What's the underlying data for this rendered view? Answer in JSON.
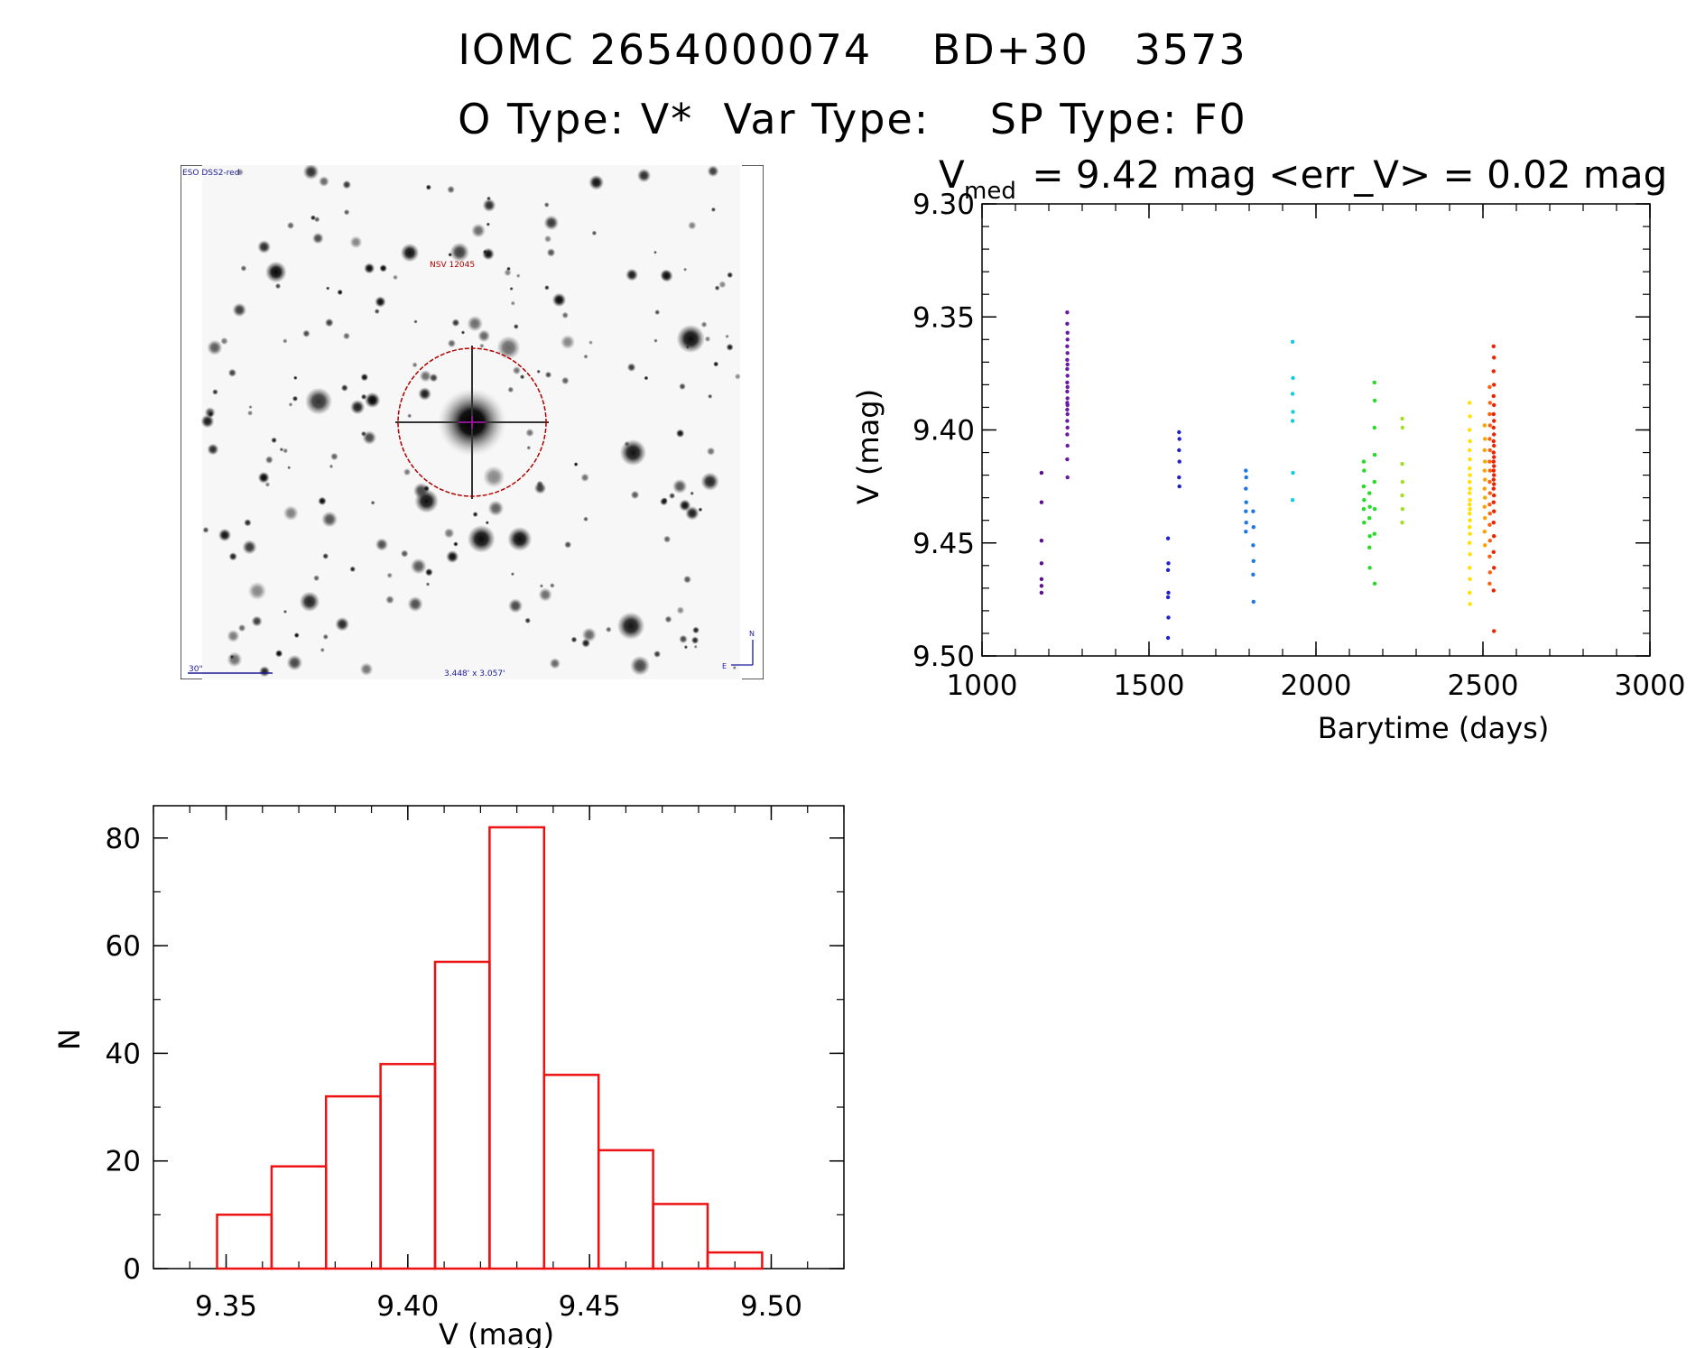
{
  "titles": {
    "line1": "IOMC 2654000074    BD+30   3573",
    "line2": "O Type: V*  Var Type:    SP Type: F0"
  },
  "finder": {
    "survey_label": "ESO DSS2-red",
    "target_label": "NSV 12045",
    "scale_label": "30\"",
    "fov_label": "3.448' x 3.057'",
    "north_label": "N",
    "east_label": "E"
  },
  "colors": {
    "histogram": "#ee1111",
    "axes": "#000000"
  },
  "chart_data": [
    {
      "type": "scatter",
      "title_main": "V",
      "title_sub": "med",
      "title_rest": " = 9.42 mag <err_V> = 0.02 mag",
      "xlabel": "Barytime (days)",
      "ylabel": "V (mag)",
      "xlim": [
        1000,
        3000
      ],
      "ylim": [
        9.3,
        9.5
      ],
      "y_inverted": true,
      "xticks": [
        "1000",
        "1500",
        "2000",
        "2500",
        "3000"
      ],
      "yticks": [
        "9.30",
        "9.35",
        "9.40",
        "9.45",
        "9.50"
      ],
      "color_scale": "rainbow by time",
      "series": [
        {
          "color": "#5a0f8c",
          "points": [
            [
              1178,
              9.419
            ],
            [
              1178,
              9.432
            ],
            [
              1178,
              9.449
            ],
            [
              1178,
              9.459
            ],
            [
              1178,
              9.466
            ],
            [
              1178,
              9.469
            ],
            [
              1178,
              9.472
            ]
          ]
        },
        {
          "color": "#6a1aa8",
          "points": [
            [
              1255,
              9.348
            ],
            [
              1255,
              9.353
            ],
            [
              1256,
              9.357
            ],
            [
              1256,
              9.36
            ],
            [
              1255,
              9.363
            ],
            [
              1256,
              9.366
            ],
            [
              1255,
              9.369
            ],
            [
              1256,
              9.371
            ],
            [
              1255,
              9.373
            ],
            [
              1256,
              9.376
            ],
            [
              1255,
              9.379
            ],
            [
              1256,
              9.381
            ],
            [
              1255,
              9.383
            ],
            [
              1256,
              9.386
            ],
            [
              1255,
              9.388
            ],
            [
              1256,
              9.389
            ],
            [
              1255,
              9.391
            ],
            [
              1256,
              9.393
            ],
            [
              1255,
              9.396
            ],
            [
              1256,
              9.399
            ],
            [
              1255,
              9.402
            ],
            [
              1256,
              9.407
            ],
            [
              1255,
              9.413
            ],
            [
              1256,
              9.421
            ]
          ]
        },
        {
          "color": "#2222cc",
          "points": [
            [
              1557,
              9.448
            ],
            [
              1558,
              9.459
            ],
            [
              1557,
              9.462
            ],
            [
              1558,
              9.472
            ],
            [
              1557,
              9.474
            ],
            [
              1558,
              9.483
            ],
            [
              1557,
              9.492
            ],
            [
              1590,
              9.401
            ],
            [
              1591,
              9.404
            ],
            [
              1590,
              9.409
            ],
            [
              1591,
              9.414
            ],
            [
              1590,
              9.421
            ],
            [
              1591,
              9.425
            ]
          ]
        },
        {
          "color": "#1e78e0",
          "points": [
            [
              1790,
              9.418
            ],
            [
              1791,
              9.421
            ],
            [
              1790,
              9.426
            ],
            [
              1791,
              9.432
            ],
            [
              1790,
              9.436
            ],
            [
              1791,
              9.441
            ],
            [
              1790,
              9.445
            ],
            [
              1812,
              9.436
            ],
            [
              1813,
              9.443
            ],
            [
              1812,
              9.451
            ],
            [
              1813,
              9.458
            ],
            [
              1812,
              9.464
            ],
            [
              1813,
              9.476
            ]
          ]
        },
        {
          "color": "#10cce0",
          "points": [
            [
              1930,
              9.361
            ],
            [
              1931,
              9.377
            ],
            [
              1930,
              9.384
            ],
            [
              1931,
              9.392
            ],
            [
              1930,
              9.396
            ],
            [
              1931,
              9.419
            ],
            [
              1930,
              9.431
            ]
          ]
        },
        {
          "color": "#22dd22",
          "points": [
            [
              2143,
              9.414
            ],
            [
              2144,
              9.418
            ],
            [
              2143,
              9.425
            ],
            [
              2144,
              9.431
            ],
            [
              2143,
              9.435
            ],
            [
              2144,
              9.441
            ],
            [
              2160,
              9.428
            ],
            [
              2161,
              9.434
            ],
            [
              2160,
              9.439
            ],
            [
              2161,
              9.447
            ],
            [
              2160,
              9.452
            ],
            [
              2161,
              9.461
            ],
            [
              2175,
              9.379
            ],
            [
              2176,
              9.387
            ],
            [
              2175,
              9.399
            ],
            [
              2176,
              9.411
            ],
            [
              2175,
              9.423
            ],
            [
              2176,
              9.435
            ],
            [
              2175,
              9.446
            ],
            [
              2176,
              9.468
            ]
          ]
        },
        {
          "color": "#a0e020",
          "points": [
            [
              2258,
              9.395
            ],
            [
              2259,
              9.399
            ],
            [
              2258,
              9.415
            ],
            [
              2259,
              9.423
            ],
            [
              2258,
              9.429
            ],
            [
              2259,
              9.435
            ],
            [
              2258,
              9.441
            ]
          ]
        },
        {
          "color": "#ffe000",
          "points": [
            [
              2460,
              9.388
            ],
            [
              2461,
              9.394
            ],
            [
              2460,
              9.4
            ],
            [
              2461,
              9.405
            ],
            [
              2460,
              9.409
            ],
            [
              2461,
              9.413
            ],
            [
              2460,
              9.417
            ],
            [
              2461,
              9.42
            ],
            [
              2460,
              9.423
            ],
            [
              2461,
              9.426
            ],
            [
              2460,
              9.428
            ],
            [
              2461,
              9.431
            ],
            [
              2460,
              9.433
            ],
            [
              2461,
              9.435
            ],
            [
              2460,
              9.437
            ],
            [
              2461,
              9.44
            ],
            [
              2460,
              9.443
            ],
            [
              2461,
              9.446
            ],
            [
              2460,
              9.45
            ],
            [
              2461,
              9.455
            ],
            [
              2460,
              9.461
            ],
            [
              2461,
              9.466
            ],
            [
              2460,
              9.472
            ],
            [
              2461,
              9.477
            ]
          ]
        },
        {
          "color": "#ffa000",
          "points": [
            [
              2505,
              9.398
            ],
            [
              2506,
              9.404
            ],
            [
              2505,
              9.409
            ],
            [
              2506,
              9.414
            ],
            [
              2505,
              9.418
            ],
            [
              2506,
              9.422
            ],
            [
              2505,
              9.426
            ],
            [
              2506,
              9.43
            ],
            [
              2505,
              9.434
            ],
            [
              2506,
              9.439
            ],
            [
              2505,
              9.445
            ],
            [
              2506,
              9.451
            ]
          ]
        },
        {
          "color": "#ff6010",
          "points": [
            [
              2520,
              9.381
            ],
            [
              2521,
              9.388
            ],
            [
              2520,
              9.393
            ],
            [
              2521,
              9.398
            ],
            [
              2520,
              9.404
            ],
            [
              2521,
              9.409
            ],
            [
              2520,
              9.414
            ],
            [
              2521,
              9.418
            ],
            [
              2520,
              9.423
            ],
            [
              2521,
              9.428
            ],
            [
              2520,
              9.433
            ],
            [
              2521,
              9.437
            ],
            [
              2520,
              9.442
            ],
            [
              2521,
              9.449
            ],
            [
              2520,
              9.456
            ],
            [
              2521,
              9.463
            ],
            [
              2520,
              9.468
            ]
          ]
        },
        {
          "color": "#ee2200",
          "points": [
            [
              2532,
              9.363
            ],
            [
              2533,
              9.368
            ],
            [
              2532,
              9.374
            ],
            [
              2533,
              9.38
            ],
            [
              2532,
              9.385
            ],
            [
              2533,
              9.389
            ],
            [
              2532,
              9.393
            ],
            [
              2533,
              9.396
            ],
            [
              2532,
              9.399
            ],
            [
              2533,
              9.402
            ],
            [
              2532,
              9.405
            ],
            [
              2533,
              9.407
            ],
            [
              2532,
              9.41
            ],
            [
              2533,
              9.412
            ],
            [
              2532,
              9.414
            ],
            [
              2533,
              9.416
            ],
            [
              2532,
              9.418
            ],
            [
              2533,
              9.42
            ],
            [
              2532,
              9.422
            ],
            [
              2533,
              9.424
            ],
            [
              2532,
              9.426
            ],
            [
              2533,
              9.429
            ],
            [
              2532,
              9.432
            ],
            [
              2533,
              9.436
            ],
            [
              2532,
              9.441
            ],
            [
              2533,
              9.447
            ],
            [
              2532,
              9.454
            ],
            [
              2533,
              9.461
            ],
            [
              2532,
              9.471
            ],
            [
              2533,
              9.489
            ]
          ]
        }
      ]
    },
    {
      "type": "bar",
      "histogram": true,
      "xlabel": "V (mag)",
      "ylabel": "N",
      "xlim": [
        9.33,
        9.52
      ],
      "ylim": [
        0,
        86
      ],
      "xticks": [
        "9.35",
        "9.40",
        "9.45",
        "9.50"
      ],
      "yticks": [
        "0",
        "20",
        "40",
        "60",
        "80"
      ],
      "bin_edges": [
        9.3475,
        9.3625,
        9.3775,
        9.3925,
        9.4075,
        9.4225,
        9.4375,
        9.4525,
        9.4675,
        9.4825,
        9.4975
      ],
      "values": [
        10,
        19,
        32,
        38,
        57,
        82,
        36,
        22,
        12,
        3
      ]
    }
  ]
}
